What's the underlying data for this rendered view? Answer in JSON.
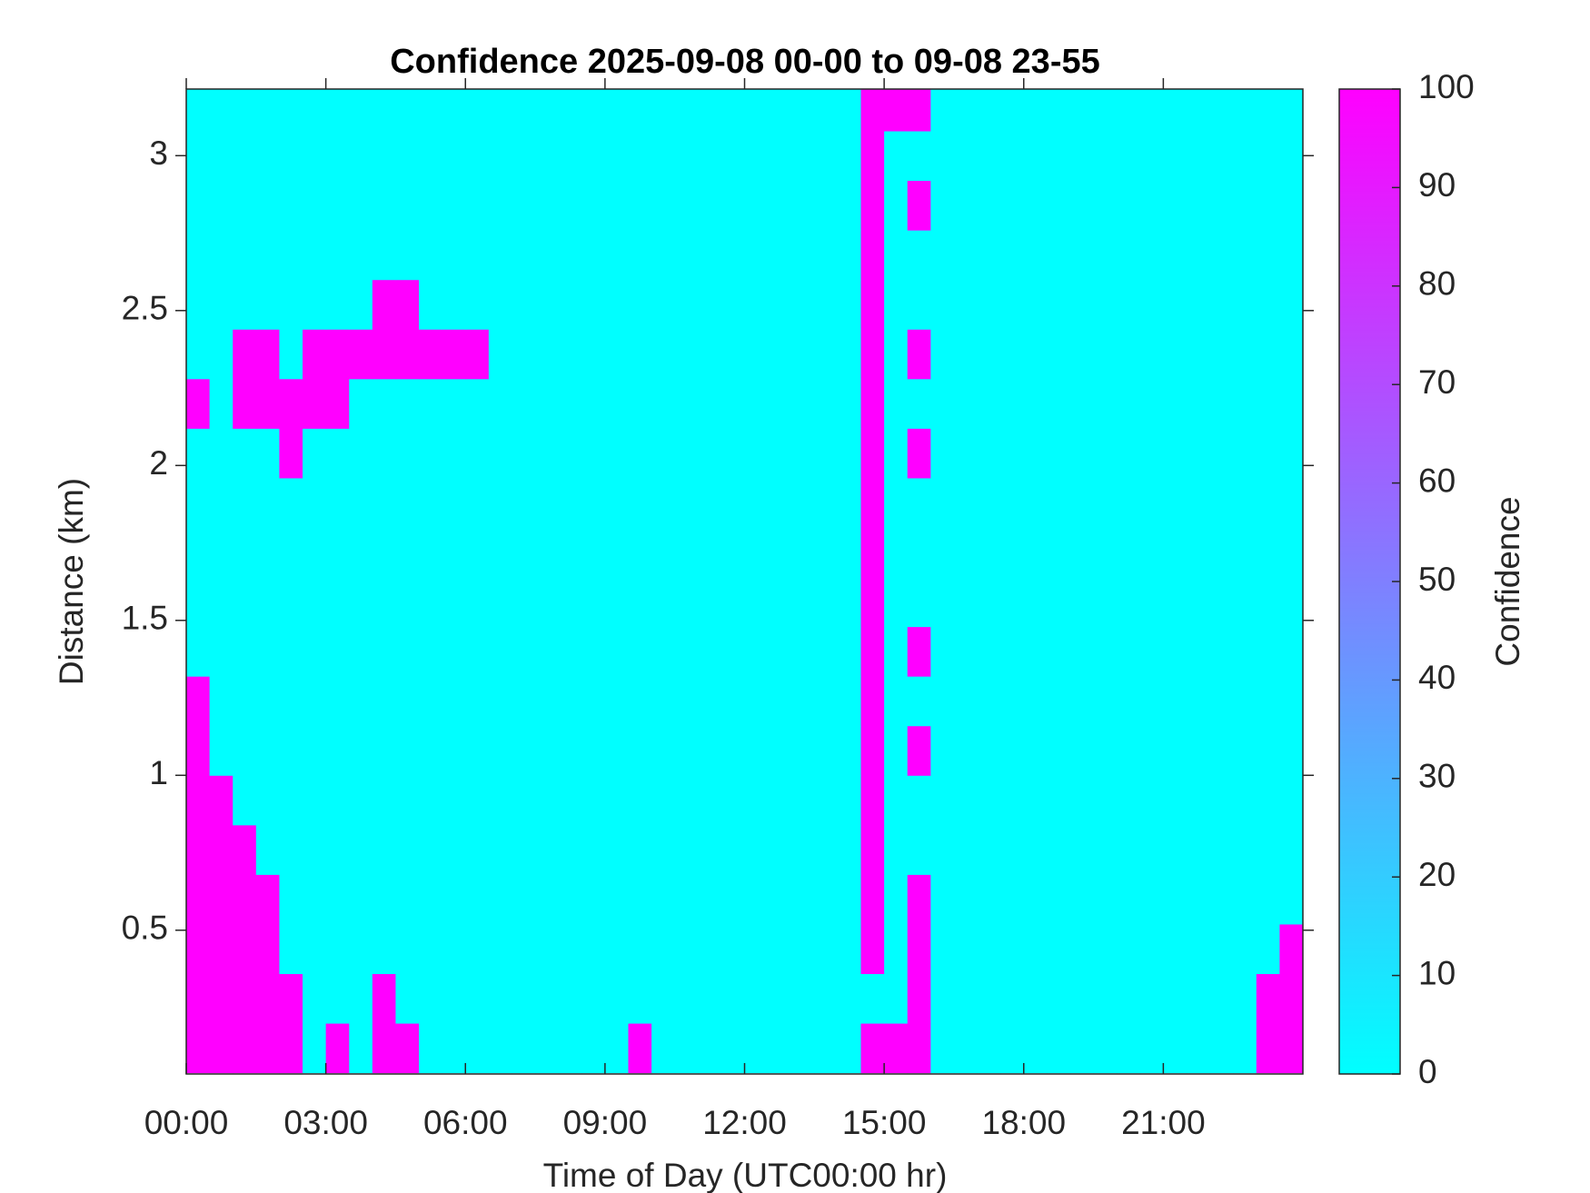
{
  "chart_data": {
    "type": "heatmap",
    "title": "Confidence 2025-09-08 00-00 to 09-08 23-55",
    "x_label": "Time of Day (UTC00:00 hr)",
    "y_label": "Distance (km)",
    "colorbar_label": "Confidence",
    "colormap": "cool",
    "xlim": [
      0,
      24
    ],
    "ylim": [
      0.036,
      3.215
    ],
    "zlim": [
      0,
      100
    ],
    "xticks": [
      {
        "value": 0,
        "label": "00:00"
      },
      {
        "value": 3,
        "label": "03:00"
      },
      {
        "value": 6,
        "label": "06:00"
      },
      {
        "value": 9,
        "label": "09:00"
      },
      {
        "value": 12,
        "label": "12:00"
      },
      {
        "value": 15,
        "label": "15:00"
      },
      {
        "value": 18,
        "label": "18:00"
      },
      {
        "value": 21,
        "label": "21:00"
      }
    ],
    "yticks": [
      0.5,
      1,
      1.5,
      2,
      2.5,
      3
    ],
    "zticks": [
      0,
      10,
      20,
      30,
      40,
      50,
      60,
      70,
      80,
      90,
      100
    ],
    "xbins": [
      0,
      0.5,
      1,
      1.5,
      2,
      2.5,
      3,
      3.5,
      4,
      4.5,
      5,
      5.5,
      6,
      6.5,
      7,
      7.5,
      8,
      8.5,
      9,
      9.5,
      10,
      10.5,
      11,
      11.5,
      12,
      12.5,
      13,
      13.5,
      14,
      14.5,
      15,
      15.5,
      16,
      16.5,
      17,
      17.5,
      18,
      18.5,
      19,
      19.5,
      20,
      20.5,
      21,
      21.5,
      22,
      22.5,
      23,
      23.5,
      24
    ],
    "ybins": [
      0.04,
      0.2,
      0.36,
      0.52,
      0.68,
      0.84,
      1,
      1.16,
      1.32,
      1.48,
      1.64,
      1.8,
      1.96,
      2.12,
      2.28,
      2.44,
      2.6,
      2.76,
      2.92,
      3.08,
      3.24
    ],
    "z": [
      [
        100,
        100,
        100,
        100,
        100,
        0,
        100,
        0,
        100,
        100,
        0,
        0,
        0,
        0,
        0,
        0,
        0,
        0,
        0,
        100,
        0,
        0,
        0,
        0,
        0,
        0,
        0,
        0,
        0,
        100,
        100,
        100,
        0,
        0,
        0,
        0,
        0,
        0,
        0,
        0,
        0,
        0,
        0,
        0,
        0,
        0,
        100,
        100
      ],
      [
        100,
        100,
        100,
        100,
        100,
        0,
        0,
        0,
        100,
        0,
        0,
        0,
        0,
        0,
        0,
        0,
        0,
        0,
        0,
        0,
        0,
        0,
        0,
        0,
        0,
        0,
        0,
        0,
        0,
        0,
        0,
        100,
        0,
        0,
        0,
        0,
        0,
        0,
        0,
        0,
        0,
        0,
        0,
        0,
        0,
        0,
        100,
        100
      ],
      [
        100,
        100,
        100,
        100,
        0,
        0,
        0,
        0,
        0,
        0,
        0,
        0,
        0,
        0,
        0,
        0,
        0,
        0,
        0,
        0,
        0,
        0,
        0,
        0,
        0,
        0,
        0,
        0,
        0,
        100,
        0,
        100,
        0,
        0,
        0,
        0,
        0,
        0,
        0,
        0,
        0,
        0,
        0,
        0,
        0,
        0,
        0,
        100
      ],
      [
        100,
        100,
        100,
        100,
        0,
        0,
        0,
        0,
        0,
        0,
        0,
        0,
        0,
        0,
        0,
        0,
        0,
        0,
        0,
        0,
        0,
        0,
        0,
        0,
        0,
        0,
        0,
        0,
        0,
        100,
        0,
        100,
        0,
        0,
        0,
        0,
        0,
        0,
        0,
        0,
        0,
        0,
        0,
        0,
        0,
        0,
        0,
        0
      ],
      [
        100,
        100,
        100,
        0,
        0,
        0,
        0,
        0,
        0,
        0,
        0,
        0,
        0,
        0,
        0,
        0,
        0,
        0,
        0,
        0,
        0,
        0,
        0,
        0,
        0,
        0,
        0,
        0,
        0,
        100,
        0,
        0,
        0,
        0,
        0,
        0,
        0,
        0,
        0,
        0,
        0,
        0,
        0,
        0,
        0,
        0,
        0,
        0
      ],
      [
        100,
        100,
        0,
        0,
        0,
        0,
        0,
        0,
        0,
        0,
        0,
        0,
        0,
        0,
        0,
        0,
        0,
        0,
        0,
        0,
        0,
        0,
        0,
        0,
        0,
        0,
        0,
        0,
        0,
        100,
        0,
        0,
        0,
        0,
        0,
        0,
        0,
        0,
        0,
        0,
        0,
        0,
        0,
        0,
        0,
        0,
        0,
        0
      ],
      [
        100,
        0,
        0,
        0,
        0,
        0,
        0,
        0,
        0,
        0,
        0,
        0,
        0,
        0,
        0,
        0,
        0,
        0,
        0,
        0,
        0,
        0,
        0,
        0,
        0,
        0,
        0,
        0,
        0,
        100,
        0,
        100,
        0,
        0,
        0,
        0,
        0,
        0,
        0,
        0,
        0,
        0,
        0,
        0,
        0,
        0,
        0,
        0
      ],
      [
        100,
        0,
        0,
        0,
        0,
        0,
        0,
        0,
        0,
        0,
        0,
        0,
        0,
        0,
        0,
        0,
        0,
        0,
        0,
        0,
        0,
        0,
        0,
        0,
        0,
        0,
        0,
        0,
        0,
        100,
        0,
        0,
        0,
        0,
        0,
        0,
        0,
        0,
        0,
        0,
        0,
        0,
        0,
        0,
        0,
        0,
        0,
        0
      ],
      [
        0,
        0,
        0,
        0,
        0,
        0,
        0,
        0,
        0,
        0,
        0,
        0,
        0,
        0,
        0,
        0,
        0,
        0,
        0,
        0,
        0,
        0,
        0,
        0,
        0,
        0,
        0,
        0,
        0,
        100,
        0,
        100,
        0,
        0,
        0,
        0,
        0,
        0,
        0,
        0,
        0,
        0,
        0,
        0,
        0,
        0,
        0,
        0
      ],
      [
        0,
        0,
        0,
        0,
        0,
        0,
        0,
        0,
        0,
        0,
        0,
        0,
        0,
        0,
        0,
        0,
        0,
        0,
        0,
        0,
        0,
        0,
        0,
        0,
        0,
        0,
        0,
        0,
        0,
        100,
        0,
        0,
        0,
        0,
        0,
        0,
        0,
        0,
        0,
        0,
        0,
        0,
        0,
        0,
        0,
        0,
        0,
        0
      ],
      [
        0,
        0,
        0,
        0,
        0,
        0,
        0,
        0,
        0,
        0,
        0,
        0,
        0,
        0,
        0,
        0,
        0,
        0,
        0,
        0,
        0,
        0,
        0,
        0,
        0,
        0,
        0,
        0,
        0,
        100,
        0,
        0,
        0,
        0,
        0,
        0,
        0,
        0,
        0,
        0,
        0,
        0,
        0,
        0,
        0,
        0,
        0,
        0
      ],
      [
        0,
        0,
        0,
        0,
        0,
        0,
        0,
        0,
        0,
        0,
        0,
        0,
        0,
        0,
        0,
        0,
        0,
        0,
        0,
        0,
        0,
        0,
        0,
        0,
        0,
        0,
        0,
        0,
        0,
        100,
        0,
        0,
        0,
        0,
        0,
        0,
        0,
        0,
        0,
        0,
        0,
        0,
        0,
        0,
        0,
        0,
        0,
        0
      ],
      [
        0,
        0,
        0,
        0,
        100,
        0,
        0,
        0,
        0,
        0,
        0,
        0,
        0,
        0,
        0,
        0,
        0,
        0,
        0,
        0,
        0,
        0,
        0,
        0,
        0,
        0,
        0,
        0,
        0,
        100,
        0,
        100,
        0,
        0,
        0,
        0,
        0,
        0,
        0,
        0,
        0,
        0,
        0,
        0,
        0,
        0,
        0,
        0
      ],
      [
        100,
        0,
        100,
        100,
        100,
        100,
        100,
        0,
        0,
        0,
        0,
        0,
        0,
        0,
        0,
        0,
        0,
        0,
        0,
        0,
        0,
        0,
        0,
        0,
        0,
        0,
        0,
        0,
        0,
        100,
        0,
        0,
        0,
        0,
        0,
        0,
        0,
        0,
        0,
        0,
        0,
        0,
        0,
        0,
        0,
        0,
        0,
        0
      ],
      [
        0,
        0,
        100,
        100,
        0,
        100,
        100,
        100,
        100,
        100,
        100,
        100,
        100,
        0,
        0,
        0,
        0,
        0,
        0,
        0,
        0,
        0,
        0,
        0,
        0,
        0,
        0,
        0,
        0,
        100,
        0,
        100,
        0,
        0,
        0,
        0,
        0,
        0,
        0,
        0,
        0,
        0,
        0,
        0,
        0,
        0,
        0,
        0
      ],
      [
        0,
        0,
        0,
        0,
        0,
        0,
        0,
        0,
        100,
        100,
        0,
        0,
        0,
        0,
        0,
        0,
        0,
        0,
        0,
        0,
        0,
        0,
        0,
        0,
        0,
        0,
        0,
        0,
        0,
        100,
        0,
        0,
        0,
        0,
        0,
        0,
        0,
        0,
        0,
        0,
        0,
        0,
        0,
        0,
        0,
        0,
        0,
        0
      ],
      [
        0,
        0,
        0,
        0,
        0,
        0,
        0,
        0,
        0,
        0,
        0,
        0,
        0,
        0,
        0,
        0,
        0,
        0,
        0,
        0,
        0,
        0,
        0,
        0,
        0,
        0,
        0,
        0,
        0,
        100,
        0,
        0,
        0,
        0,
        0,
        0,
        0,
        0,
        0,
        0,
        0,
        0,
        0,
        0,
        0,
        0,
        0,
        0
      ],
      [
        0,
        0,
        0,
        0,
        0,
        0,
        0,
        0,
        0,
        0,
        0,
        0,
        0,
        0,
        0,
        0,
        0,
        0,
        0,
        0,
        0,
        0,
        0,
        0,
        0,
        0,
        0,
        0,
        0,
        100,
        0,
        100,
        0,
        0,
        0,
        0,
        0,
        0,
        0,
        0,
        0,
        0,
        0,
        0,
        0,
        0,
        0,
        0
      ],
      [
        0,
        0,
        0,
        0,
        0,
        0,
        0,
        0,
        0,
        0,
        0,
        0,
        0,
        0,
        0,
        0,
        0,
        0,
        0,
        0,
        0,
        0,
        0,
        0,
        0,
        0,
        0,
        0,
        0,
        100,
        0,
        0,
        0,
        0,
        0,
        0,
        0,
        0,
        0,
        0,
        0,
        0,
        0,
        0,
        0,
        0,
        0,
        0
      ],
      [
        0,
        0,
        0,
        0,
        0,
        0,
        0,
        0,
        0,
        0,
        0,
        0,
        0,
        0,
        0,
        0,
        0,
        0,
        0,
        0,
        0,
        0,
        0,
        0,
        0,
        0,
        0,
        0,
        0,
        100,
        100,
        100,
        0,
        0,
        0,
        0,
        0,
        0,
        0,
        0,
        0,
        0,
        0,
        0,
        0,
        0,
        0,
        0
      ]
    ]
  }
}
